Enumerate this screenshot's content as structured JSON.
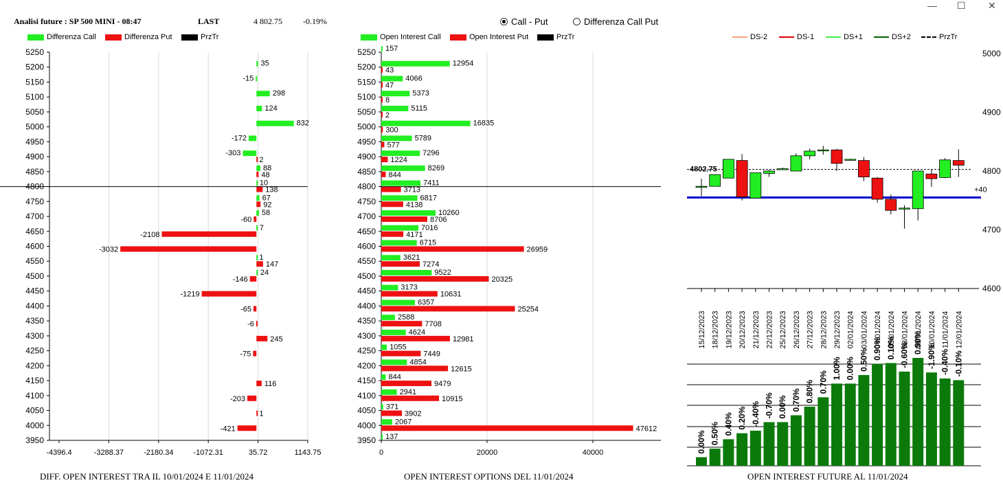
{
  "header": {
    "title": "Analisi future : SP 500 MINI - 08:47",
    "last_label": "LAST",
    "last_value": "4 802.75",
    "change": "-0.19%"
  },
  "window": {
    "minimize": "—",
    "maximize": "☐",
    "close": "✕"
  },
  "radio": {
    "option1": "Call - Put",
    "option2": "Differenza Call Put",
    "selected": "option1"
  },
  "colors": {
    "call": "#22ee22",
    "put": "#ee1111",
    "prz": "#000000",
    "blue_line": "#0000cc",
    "ds2": "#f4a07a",
    "ds1": "#dd0000",
    "dsp1": "#44ee44",
    "dsp2": "#006600",
    "bars": "#0b7a0b"
  },
  "footers": {
    "left": "DIFF. OPEN INTEREST TRA IL 10/01/2024 E 11/01/2024",
    "middle": "OPEN INTEREST OPTIONS DEL 11/01/2024",
    "right": "OPEN INTEREST FUTURE AL 11/01/2024"
  },
  "chart_data": [
    {
      "type": "bar",
      "orientation": "horizontal",
      "legend": [
        "Differenza Call",
        "Differenza Put",
        "PrzTr"
      ],
      "strikes": [
        4000,
        4050,
        4100,
        4150,
        4200,
        4250,
        4300,
        4350,
        4400,
        4450,
        4500,
        4550,
        4600,
        4650,
        4700,
        4750,
        4800,
        4850,
        4900,
        4950,
        5000,
        5050,
        5100,
        5150,
        5200
      ],
      "ylim": [
        3950,
        5250
      ],
      "ytick_labels": [
        "3950",
        "4000",
        "4050",
        "4100",
        "4150",
        "4200",
        "4250",
        "4300",
        "4350",
        "4400",
        "4450",
        "4500",
        "4550",
        "4600",
        "4650",
        "4700",
        "4750",
        "4800",
        "4850",
        "4900",
        "4950",
        "5000",
        "5050",
        "5100",
        "5150",
        "5200",
        "5250"
      ],
      "xlim": [
        -4396.4,
        1143.75
      ],
      "xtick_labels": [
        "-4396.4",
        "-3288.37",
        "-2180.34",
        "-1072.31",
        "35.72",
        "1143.75"
      ],
      "series": [
        {
          "name": "Differenza Call",
          "values": [
            null,
            null,
            null,
            null,
            null,
            null,
            null,
            null,
            null,
            null,
            24,
            1,
            null,
            7,
            58,
            67,
            10,
            88,
            -303,
            -172,
            832,
            124,
            298,
            -15,
            35
          ]
        },
        {
          "name": "Differenza Put",
          "values": [
            -421,
            1,
            -203,
            116,
            null,
            -75,
            245,
            -6,
            -65,
            -1219,
            -146,
            147,
            -3032,
            -2108,
            -60,
            92,
            138,
            48,
            2,
            null,
            null,
            null,
            null,
            null,
            null
          ]
        }
      ],
      "przTr": 4802.75
    },
    {
      "type": "bar",
      "orientation": "horizontal",
      "legend": [
        "Open Interest Call",
        "Open Interest Put",
        "PrzTr"
      ],
      "strikes": [
        3950,
        4000,
        4050,
        4100,
        4150,
        4200,
        4250,
        4300,
        4350,
        4400,
        4450,
        4500,
        4550,
        4600,
        4650,
        4700,
        4750,
        4800,
        4850,
        4900,
        4950,
        5000,
        5050,
        5100,
        5150,
        5200,
        5250
      ],
      "ylim": [
        3950,
        5250
      ],
      "ytick_labels": [
        "3950",
        "4000",
        "4050",
        "4100",
        "4150",
        "4200",
        "4250",
        "4300",
        "4350",
        "4400",
        "4450",
        "4500",
        "4550",
        "4600",
        "4650",
        "4700",
        "4750",
        "4800",
        "4850",
        "4900",
        "4950",
        "5000",
        "5050",
        "5100",
        "5150",
        "5200",
        "5250"
      ],
      "xlim": [
        0,
        52000
      ],
      "xtick_labels": [
        "0",
        "20000",
        "40000"
      ],
      "series": [
        {
          "name": "Open Interest Call",
          "values": [
            137,
            2067,
            371,
            2941,
            844,
            4854,
            1055,
            4624,
            2588,
            6357,
            3173,
            9522,
            3621,
            6715,
            7016,
            10260,
            6817,
            7411,
            8269,
            7296,
            5789,
            16835,
            5115,
            5373,
            4066,
            12954,
            157
          ]
        },
        {
          "name": "Open Interest Put",
          "values": [
            null,
            47612,
            3902,
            10915,
            9479,
            12615,
            7449,
            12981,
            7708,
            25254,
            10631,
            20325,
            7274,
            26959,
            4171,
            8706,
            4138,
            3713,
            844,
            1224,
            577,
            300,
            2,
            8,
            47,
            43,
            null
          ]
        }
      ],
      "przTr": 4802.75
    },
    {
      "type": "candlestick",
      "legend": [
        "DS-2",
        "DS-1",
        "DS+1",
        "DS+2",
        "PrzTr"
      ],
      "dates": [
        "15/12/2023",
        "18/12/2023",
        "19/12/2023",
        "20/12/2023",
        "21/12/2023",
        "22/12/2023",
        "25/12/2023",
        "26/12/2023",
        "27/12/2023",
        "28/12/2023",
        "29/12/2023",
        "02/01/2024",
        "03/01/2024",
        "04/01/2024",
        "05/01/2024",
        "08/01/2024",
        "09/01/2024",
        "10/01/2024",
        "11/01/2024",
        "12/01/2024"
      ],
      "ylim": [
        4600,
        5000
      ],
      "ytick_labels": [
        "4600",
        "4700",
        "4800",
        "4900",
        "5000"
      ],
      "candles": [
        {
          "o": 4774,
          "h": 4787,
          "l": 4757,
          "c": 4774
        },
        {
          "o": 4774,
          "h": 4794,
          "l": 4774,
          "c": 4794
        },
        {
          "o": 4788,
          "h": 4820,
          "l": 4788,
          "c": 4820
        },
        {
          "o": 4818,
          "h": 4829,
          "l": 4750,
          "c": 4756
        },
        {
          "o": 4754,
          "h": 4797,
          "l": 4754,
          "c": 4797
        },
        {
          "o": 4796,
          "h": 4802,
          "l": 4790,
          "c": 4800
        },
        {
          "o": 4804,
          "h": 4806,
          "l": 4802,
          "c": 4804
        },
        {
          "o": 4800,
          "h": 4830,
          "l": 4800,
          "c": 4826
        },
        {
          "o": 4826,
          "h": 4838,
          "l": 4820,
          "c": 4834
        },
        {
          "o": 4836,
          "h": 4843,
          "l": 4828,
          "c": 4836
        },
        {
          "o": 4836,
          "h": 4838,
          "l": 4800,
          "c": 4813
        },
        {
          "o": 4820,
          "h": 4821,
          "l": 4819,
          "c": 4820
        },
        {
          "o": 4818,
          "h": 4824,
          "l": 4783,
          "c": 4790
        },
        {
          "o": 4788,
          "h": 4790,
          "l": 4746,
          "c": 4752
        },
        {
          "o": 4752,
          "h": 4760,
          "l": 4726,
          "c": 4733
        },
        {
          "o": 4736,
          "h": 4742,
          "l": 4702,
          "c": 4737
        },
        {
          "o": 4736,
          "h": 4800,
          "l": 4716,
          "c": 4800
        },
        {
          "o": 4795,
          "h": 4803,
          "l": 4773,
          "c": 4787
        },
        {
          "o": 4789,
          "h": 4822,
          "l": 4788,
          "c": 4819
        },
        {
          "o": 4818,
          "h": 4837,
          "l": 4790,
          "c": 4810
        }
      ],
      "przTr": 4802.75,
      "przTr_label": "4802.75",
      "support_level": 4755,
      "support_label": "+40"
    },
    {
      "type": "bar",
      "values": [
        0.0,
        0.5,
        0.4,
        0.2,
        -0.4,
        -0.7,
        0.0,
        0.7,
        0.8,
        0.7,
        1.0,
        0.0,
        0.5,
        0.9,
        0.1,
        -0.6,
        0.9,
        -1.9,
        -0.4,
        -0.1
      ],
      "value_labels": [
        "0.00%",
        "0.50%",
        "0.40%",
        "0.20%",
        "-0.40%",
        "-0.70%",
        "0.00%",
        "0.70%",
        "0.80%",
        "0.70%",
        "1.00%",
        "0.00%",
        "0.50%",
        "0.90%",
        "0.10%",
        "-0.60%",
        "0.90%",
        "-1.90%",
        "-0.40%",
        "-0.10%"
      ],
      "levels": [
        1,
        2,
        3.1,
        3.8,
        4.1,
        5.1,
        5.1,
        5.9,
        6.9,
        8.0,
        9.6,
        9.6,
        10.6,
        11.9,
        12.0,
        11.0,
        12.6,
        10.9,
        10.2,
        10.0
      ],
      "ylim": [
        0,
        16
      ]
    }
  ]
}
